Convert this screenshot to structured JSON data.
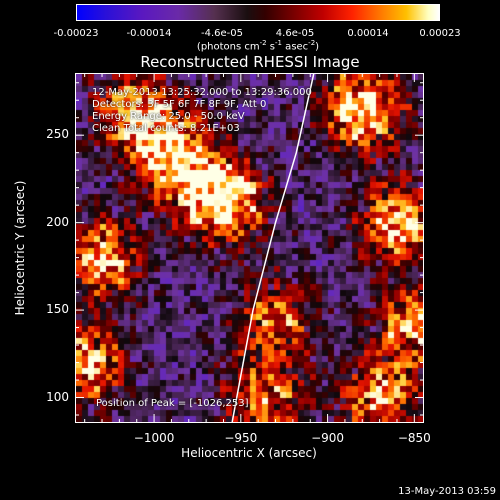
{
  "colorbar": {
    "ticks": [
      "-0.00023",
      "-0.00014",
      "-4.6e-05",
      "4.6e-05",
      "0.00014",
      "0.00023"
    ],
    "units": "(photons cm",
    "units_parts": {
      "cm_exp": "-2",
      "s": " s",
      "s_exp": "-1",
      "asec": " asec",
      "asec_exp": "-2",
      "close": ")"
    }
  },
  "chart_data": {
    "type": "heatmap",
    "title": "Reconstructed RHESSI Image",
    "xlabel": "Heliocentric X (arcsec)",
    "ylabel": "Heliocentric Y (arcsec)",
    "xlim": [
      -1045,
      -845
    ],
    "ylim": [
      86,
      285
    ],
    "x_ticks": [
      -1000,
      -950,
      -900,
      -850
    ],
    "x_tick_labels": [
      "−1000",
      "−950",
      "−900",
      "−850"
    ],
    "y_ticks": [
      100,
      150,
      200,
      250
    ],
    "y_tick_labels": [
      "100",
      "150",
      "200",
      "250"
    ],
    "colorbar_range": [
      -0.00023,
      0.00023
    ],
    "limb": [
      [
        -955,
        86
      ],
      [
        -943,
        150
      ],
      [
        -930,
        200
      ],
      [
        -918,
        240
      ],
      [
        -908,
        285
      ]
    ],
    "peak_position": [
      -1026,
      253
    ],
    "hot_regions": [
      {
        "x": -960,
        "y": 212,
        "level": 0.95
      },
      {
        "x": -1010,
        "y": 262,
        "level": 0.85
      },
      {
        "x": -880,
        "y": 265,
        "level": 0.9
      },
      {
        "x": -985,
        "y": 235,
        "level": 0.8
      },
      {
        "x": -1030,
        "y": 180,
        "level": 0.7
      },
      {
        "x": -860,
        "y": 200,
        "level": 0.75
      },
      {
        "x": -850,
        "y": 140,
        "level": 0.65
      },
      {
        "x": -930,
        "y": 145,
        "level": 0.55
      },
      {
        "x": -935,
        "y": 100,
        "level": 0.6
      },
      {
        "x": -1040,
        "y": 120,
        "level": 0.7
      },
      {
        "x": -870,
        "y": 100,
        "level": 0.65
      }
    ]
  },
  "annotations": {
    "time_range": "12-May-2013 13:25:32.000 to 13:29:36.000",
    "detectors": "Detectors: 3F 5F 6F 7F 8F 9F, Att 0",
    "energy": "Energy Range: 25.0 - 50.0 keV",
    "clean": "Clean    Total counts: 8.21E+03",
    "peak": "Position of Peak = [-1026,253]"
  },
  "timestamp": "13-May-2013 03:59"
}
